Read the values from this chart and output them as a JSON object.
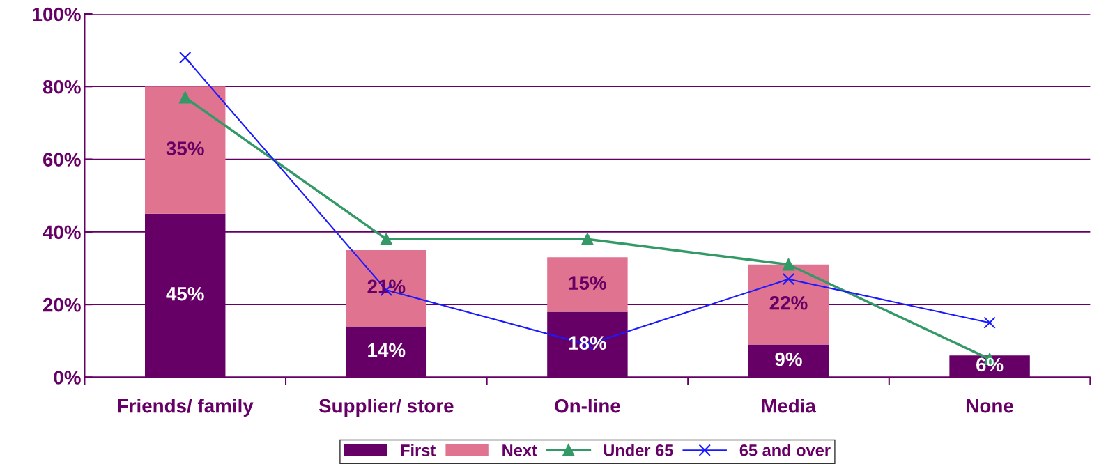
{
  "chart_data": {
    "type": "bar",
    "stacked": true,
    "categories": [
      "Friends/ family",
      "Supplier/ store",
      "On-line",
      "Media",
      "None"
    ],
    "series": [
      {
        "name": "First",
        "color": "#660066",
        "values": [
          45,
          14,
          18,
          9,
          6
        ],
        "value_labels": [
          "45%",
          "14%",
          "18%",
          "9%",
          "6%"
        ]
      },
      {
        "name": "Next",
        "color": "#e0738f",
        "values": [
          35,
          21,
          15,
          22,
          null
        ],
        "value_labels": [
          "35%",
          "21%",
          "15%",
          "22%",
          null
        ]
      },
      {
        "name": "Under 65",
        "type": "line",
        "color": "#339966",
        "marker": "triangle",
        "values": [
          77,
          38,
          38,
          31,
          5
        ]
      },
      {
        "name": "65 and over",
        "type": "line",
        "color": "#1a1aff",
        "marker": "cross",
        "values": [
          88,
          24,
          9,
          27,
          15
        ]
      }
    ],
    "ylim": [
      0,
      100
    ],
    "yticks": [
      {
        "value": 0,
        "label": "0%"
      },
      {
        "value": 20,
        "label": "20%"
      },
      {
        "value": 40,
        "label": "40%"
      },
      {
        "value": 60,
        "label": "60%"
      },
      {
        "value": 80,
        "label": "80%"
      },
      {
        "value": 100,
        "label": "100%"
      }
    ],
    "grid": "y",
    "legend": "bottom"
  }
}
